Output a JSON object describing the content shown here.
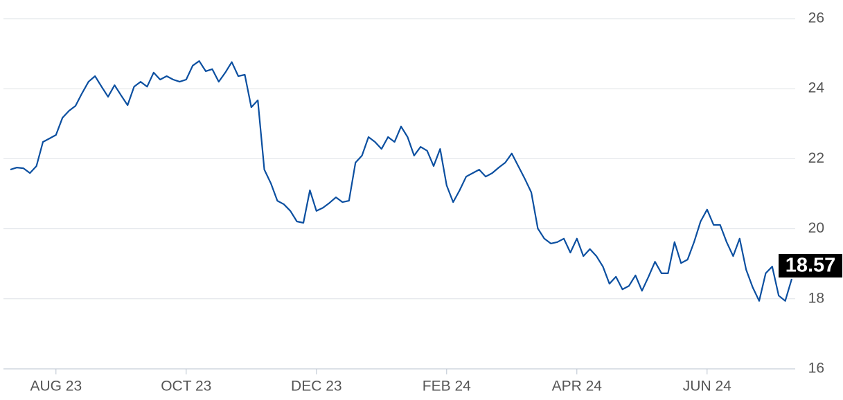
{
  "chart_data": {
    "type": "line",
    "categories": [
      null,
      null,
      null,
      null,
      null,
      null,
      null,
      "AUG 23",
      null,
      null,
      null,
      null,
      null,
      null,
      null,
      null,
      null,
      null,
      null,
      null,
      null,
      null,
      null,
      null,
      null,
      null,
      null,
      "OCT 23",
      null,
      null,
      null,
      null,
      null,
      null,
      null,
      null,
      null,
      null,
      null,
      null,
      null,
      null,
      null,
      null,
      null,
      null,
      null,
      "DEC 23",
      null,
      null,
      null,
      null,
      null,
      null,
      null,
      null,
      null,
      null,
      null,
      null,
      null,
      null,
      null,
      null,
      null,
      null,
      null,
      "FEB 24",
      null,
      null,
      null,
      null,
      null,
      null,
      null,
      null,
      null,
      null,
      null,
      null,
      null,
      null,
      null,
      null,
      null,
      null,
      null,
      "APR 24",
      null,
      null,
      null,
      null,
      null,
      null,
      null,
      null,
      null,
      null,
      null,
      null,
      null,
      null,
      null,
      null,
      null,
      null,
      null,
      "JUN 24",
      null,
      null,
      null,
      null,
      null,
      null,
      null,
      null,
      null,
      null,
      null,
      null,
      null
    ],
    "values": [
      21.69,
      21.75,
      21.73,
      21.59,
      21.79,
      22.48,
      22.58,
      22.68,
      23.17,
      23.37,
      23.51,
      23.87,
      24.2,
      24.36,
      24.06,
      23.77,
      24.1,
      23.81,
      23.53,
      24.06,
      24.2,
      24.06,
      24.46,
      24.26,
      24.36,
      24.26,
      24.2,
      24.26,
      24.66,
      24.79,
      24.5,
      24.56,
      24.2,
      24.46,
      24.76,
      24.36,
      24.4,
      23.47,
      23.67,
      21.69,
      21.3,
      20.8,
      20.7,
      20.51,
      20.21,
      20.17,
      21.1,
      20.51,
      20.6,
      20.74,
      20.9,
      20.76,
      20.8,
      21.89,
      22.09,
      22.62,
      22.48,
      22.28,
      22.62,
      22.48,
      22.92,
      22.62,
      22.09,
      22.34,
      22.23,
      21.79,
      22.28,
      21.24,
      20.76,
      21.1,
      21.49,
      21.59,
      21.69,
      21.49,
      21.59,
      21.75,
      21.89,
      22.15,
      21.79,
      21.43,
      21.04,
      20.01,
      19.72,
      19.58,
      19.62,
      19.72,
      19.32,
      19.72,
      19.22,
      19.42,
      19.22,
      18.92,
      18.43,
      18.63,
      18.27,
      18.37,
      18.67,
      18.23,
      18.63,
      19.06,
      18.73,
      18.73,
      19.62,
      19.02,
      19.12,
      19.62,
      20.21,
      20.55,
      20.11,
      20.11,
      19.62,
      19.22,
      19.72,
      18.83,
      18.33,
      17.94,
      18.73,
      18.92,
      18.09,
      17.94,
      18.57
    ],
    "color": "#0b4fa0",
    "ylim": [
      16,
      26
    ],
    "yticks": [
      16,
      18,
      20,
      22,
      24,
      26
    ],
    "grid": true
  }
}
